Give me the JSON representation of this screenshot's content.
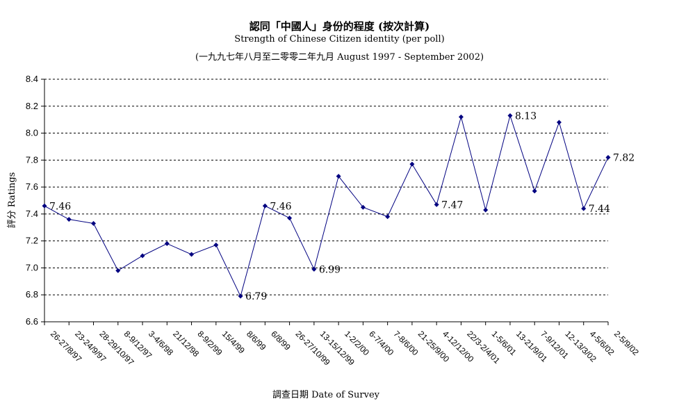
{
  "chart_data": {
    "type": "line",
    "title": "認同「中國人」身份的程度 (按次計算)",
    "subtitle": "Strength of Chinese Citizen identity (per poll)",
    "subtitle2": "(一九九七年八月至二零零二年九月 August 1997 - September 2002)",
    "xlabel": "調查日期 Date of Survey",
    "ylabel": "評分 Ratings",
    "ylim": [
      6.6,
      8.4
    ],
    "yticks": [
      "6.6",
      "6.8",
      "7.0",
      "7.2",
      "7.4",
      "7.6",
      "7.8",
      "8.0",
      "8.2",
      "8.4"
    ],
    "grid": true,
    "legend": "none",
    "line_color": "#000080",
    "categories": [
      "26-27/8/97",
      "23-24/9/97",
      "28-29/10/97",
      "8-9/12/97",
      "3-4/6/98",
      "21/12/98",
      "8-9/2/99",
      "15/4/99",
      "8/6/99",
      "6/8/99",
      "26-27/10/99",
      "13-15/12/99",
      "1-2/2/00",
      "6-7/4/00",
      "7-8/6/00",
      "21-25/9/00",
      "4-12/12/00",
      "22/3-2/4/01",
      "1-5/6/01",
      "13-21/9/01",
      "7-9/12/01",
      "12-13/3/02",
      "4-5/6/02",
      "2-5/9/02"
    ],
    "values": [
      7.46,
      7.36,
      7.33,
      6.98,
      7.09,
      7.18,
      7.1,
      7.17,
      6.79,
      7.46,
      7.37,
      6.99,
      7.68,
      7.45,
      7.38,
      7.77,
      7.47,
      8.12,
      7.43,
      8.13,
      7.57,
      8.08,
      7.44,
      7.82
    ],
    "data_labels": [
      {
        "index": 0,
        "text": "7.46"
      },
      {
        "index": 8,
        "text": "6.79"
      },
      {
        "index": 9,
        "text": "7.46"
      },
      {
        "index": 11,
        "text": "6.99"
      },
      {
        "index": 16,
        "text": "7.47"
      },
      {
        "index": 19,
        "text": "8.13"
      },
      {
        "index": 22,
        "text": "7.44"
      },
      {
        "index": 23,
        "text": "7.82"
      }
    ]
  }
}
